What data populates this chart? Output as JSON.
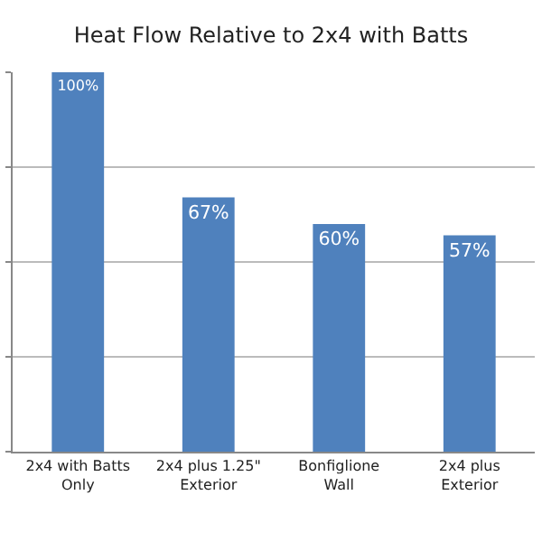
{
  "chart_data": {
    "type": "bar",
    "title": "Heat Flow Relative to 2x4 with Batts",
    "categories": [
      "2x4 with Batts Only",
      "2x4 plus 1.25\" Exterior",
      "Bonfiglione Wall",
      "2x4 plus Exterior"
    ],
    "series": [
      {
        "color": "#4f81bd",
        "values": [
          100,
          67,
          60,
          57
        ],
        "value_labels": [
          "100%",
          "67%",
          "60%",
          "57%"
        ]
      }
    ],
    "ylim": [
      0,
      100
    ],
    "yticks": [
      {
        "value": 0,
        "label": null
      },
      {
        "value": 25,
        "label": null
      },
      {
        "value": 50,
        "label": null
      },
      {
        "value": 75,
        "label": null
      },
      {
        "value": 100,
        "label": null
      }
    ],
    "grid": "y",
    "tick_labels": "x"
  }
}
